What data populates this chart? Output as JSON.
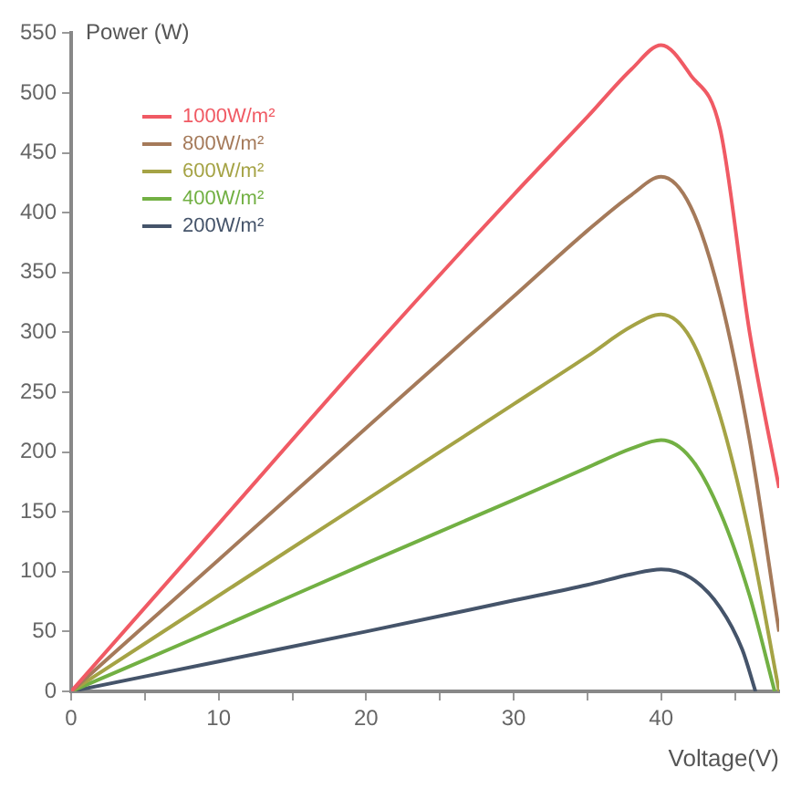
{
  "chart_data": {
    "type": "line",
    "xlabel": "Voltage(V)",
    "ylabel": "Power (W)",
    "xlim": [
      0,
      48
    ],
    "ylim": [
      0,
      550
    ],
    "xticks": [
      0,
      {
        "value": 5,
        "label": null
      },
      10,
      {
        "value": 15,
        "label": null
      },
      20,
      {
        "value": 25,
        "label": null
      },
      30,
      {
        "value": 35,
        "label": null
      },
      40,
      {
        "value": 45,
        "label": null
      }
    ],
    "yticks": [
      0,
      50,
      100,
      150,
      200,
      250,
      300,
      350,
      400,
      450,
      500,
      550
    ],
    "grid": false,
    "legend": "top left",
    "marker": "none",
    "line_style": "solid",
    "series": [
      {
        "name": "1000W/m²",
        "color": "#f05a64",
        "x": [
          0,
          10,
          20,
          30,
          35,
          38,
          40,
          42,
          44,
          46,
          48
        ],
        "values": [
          0,
          140,
          280,
          415,
          480,
          520,
          540,
          515,
          470,
          300,
          170
        ]
      },
      {
        "name": "800W/m²",
        "color": "#a57a5a",
        "x": [
          0,
          10,
          20,
          30,
          35,
          38,
          40,
          42,
          44,
          46,
          48
        ],
        "values": [
          0,
          110,
          220,
          330,
          385,
          415,
          430,
          405,
          330,
          210,
          50
        ]
      },
      {
        "name": "600W/m²",
        "color": "#a5a345",
        "x": [
          0,
          10,
          20,
          30,
          35,
          38,
          40,
          42,
          44,
          46,
          48
        ],
        "values": [
          0,
          80,
          160,
          240,
          280,
          305,
          315,
          295,
          230,
          130,
          0
        ]
      },
      {
        "name": "400W/m²",
        "color": "#72b043",
        "x": [
          0,
          10,
          20,
          30,
          35,
          38,
          40,
          42,
          44,
          46,
          47.7
        ],
        "values": [
          0,
          53,
          107,
          160,
          187,
          203,
          210,
          195,
          150,
          80,
          0
        ]
      },
      {
        "name": "200W/m²",
        "color": "#45546a",
        "x": [
          0,
          10,
          20,
          30,
          35,
          38,
          40,
          42,
          44,
          45.5,
          46.4
        ],
        "values": [
          0,
          25,
          50,
          76,
          89,
          98,
          102,
          95,
          70,
          35,
          0
        ]
      }
    ]
  }
}
